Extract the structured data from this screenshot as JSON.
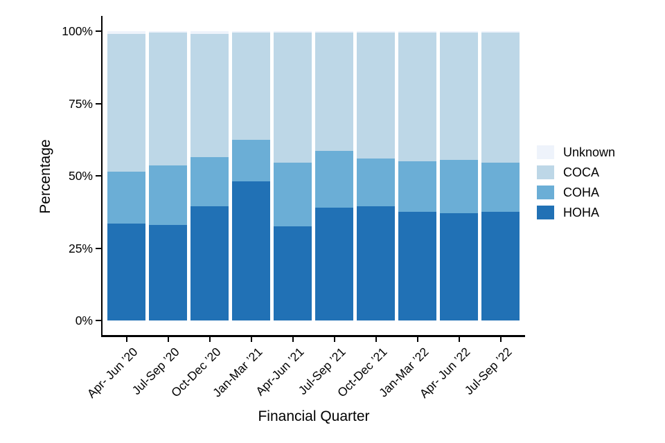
{
  "figure": {
    "background_color": "#ffffff",
    "axis_color": "#000000",
    "text_color": "#000000"
  },
  "y_axis": {
    "title": "Percentage",
    "ticks": [
      {
        "label": "0%",
        "value": 0
      },
      {
        "label": "25%",
        "value": 25
      },
      {
        "label": "50%",
        "value": 50
      },
      {
        "label": "75%",
        "value": 75
      },
      {
        "label": "100%",
        "value": 100
      }
    ]
  },
  "x_axis": {
    "title": "Financial Quarter"
  },
  "legend": {
    "position": "right",
    "entries": [
      {
        "label": "Unknown",
        "color": "#eef3fb"
      },
      {
        "label": "COCA",
        "color": "#bdd7e7"
      },
      {
        "label": "COHA",
        "color": "#6baed6"
      },
      {
        "label": "HOHA",
        "color": "#2171b5"
      }
    ]
  },
  "chart_data": {
    "type": "bar",
    "stacked": true,
    "orientation": "vertical",
    "title": "",
    "xlabel": "Financial Quarter",
    "ylabel": "Percentage",
    "ylim": [
      0,
      100
    ],
    "yticks": [
      "0%",
      "25%",
      "50%",
      "75%",
      "100%"
    ],
    "grid": false,
    "legend_position": "right",
    "categories": [
      "Apr- Jun ’20",
      "Jul-Sep ’20",
      "Oct-Dec ’20",
      "Jan-Mar ’21",
      "Apr-Jun ’21",
      "Jul-Sep ’21",
      "Oct-Dec ’21",
      "Jan-Mar ’22",
      "Apr- Jun ’22",
      "Jul-Sep ’22"
    ],
    "series": [
      {
        "name": "HOHA",
        "color": "#2171b5",
        "values": [
          33.5,
          33.0,
          39.5,
          48.0,
          32.5,
          39.0,
          39.5,
          37.5,
          37.0,
          37.5
        ]
      },
      {
        "name": "COHA",
        "color": "#6baed6",
        "values": [
          18.0,
          20.5,
          17.0,
          14.5,
          22.0,
          19.5,
          16.5,
          17.5,
          18.5,
          17.0
        ]
      },
      {
        "name": "COCA",
        "color": "#bdd7e7",
        "values": [
          47.5,
          46.0,
          42.5,
          37.0,
          45.0,
          41.0,
          43.5,
          44.5,
          44.0,
          45.0
        ]
      },
      {
        "name": "Unknown",
        "color": "#eef3fb",
        "values": [
          1.0,
          0.5,
          1.0,
          0.5,
          0.5,
          0.5,
          0.5,
          0.5,
          0.5,
          0.5
        ]
      }
    ]
  }
}
